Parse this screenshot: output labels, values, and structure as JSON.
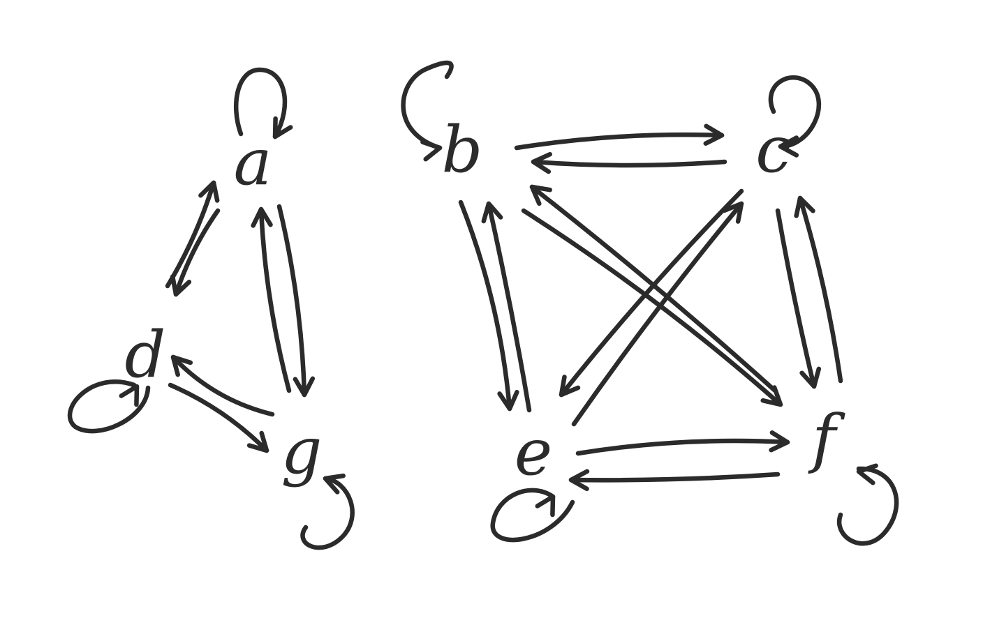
{
  "nodes": [
    {
      "id": "a",
      "label": "a"
    },
    {
      "id": "b",
      "label": "b"
    },
    {
      "id": "c",
      "label": "c"
    },
    {
      "id": "d",
      "label": "d"
    },
    {
      "id": "e",
      "label": "e"
    },
    {
      "id": "f",
      "label": "f"
    },
    {
      "id": "g",
      "label": "g"
    }
  ],
  "edges": [
    {
      "from": "a",
      "to": "a"
    },
    {
      "from": "a",
      "to": "d"
    },
    {
      "from": "d",
      "to": "a"
    },
    {
      "from": "a",
      "to": "g"
    },
    {
      "from": "g",
      "to": "a"
    },
    {
      "from": "d",
      "to": "d"
    },
    {
      "from": "d",
      "to": "g"
    },
    {
      "from": "g",
      "to": "d"
    },
    {
      "from": "g",
      "to": "g"
    },
    {
      "from": "b",
      "to": "b"
    },
    {
      "from": "b",
      "to": "c"
    },
    {
      "from": "c",
      "to": "b"
    },
    {
      "from": "c",
      "to": "c"
    },
    {
      "from": "b",
      "to": "e"
    },
    {
      "from": "e",
      "to": "b"
    },
    {
      "from": "b",
      "to": "f"
    },
    {
      "from": "f",
      "to": "b"
    },
    {
      "from": "c",
      "to": "e"
    },
    {
      "from": "e",
      "to": "c"
    },
    {
      "from": "c",
      "to": "f"
    },
    {
      "from": "f",
      "to": "c"
    },
    {
      "from": "e",
      "to": "f"
    },
    {
      "from": "f",
      "to": "e"
    },
    {
      "from": "e",
      "to": "e"
    },
    {
      "from": "f",
      "to": "f"
    }
  ]
}
